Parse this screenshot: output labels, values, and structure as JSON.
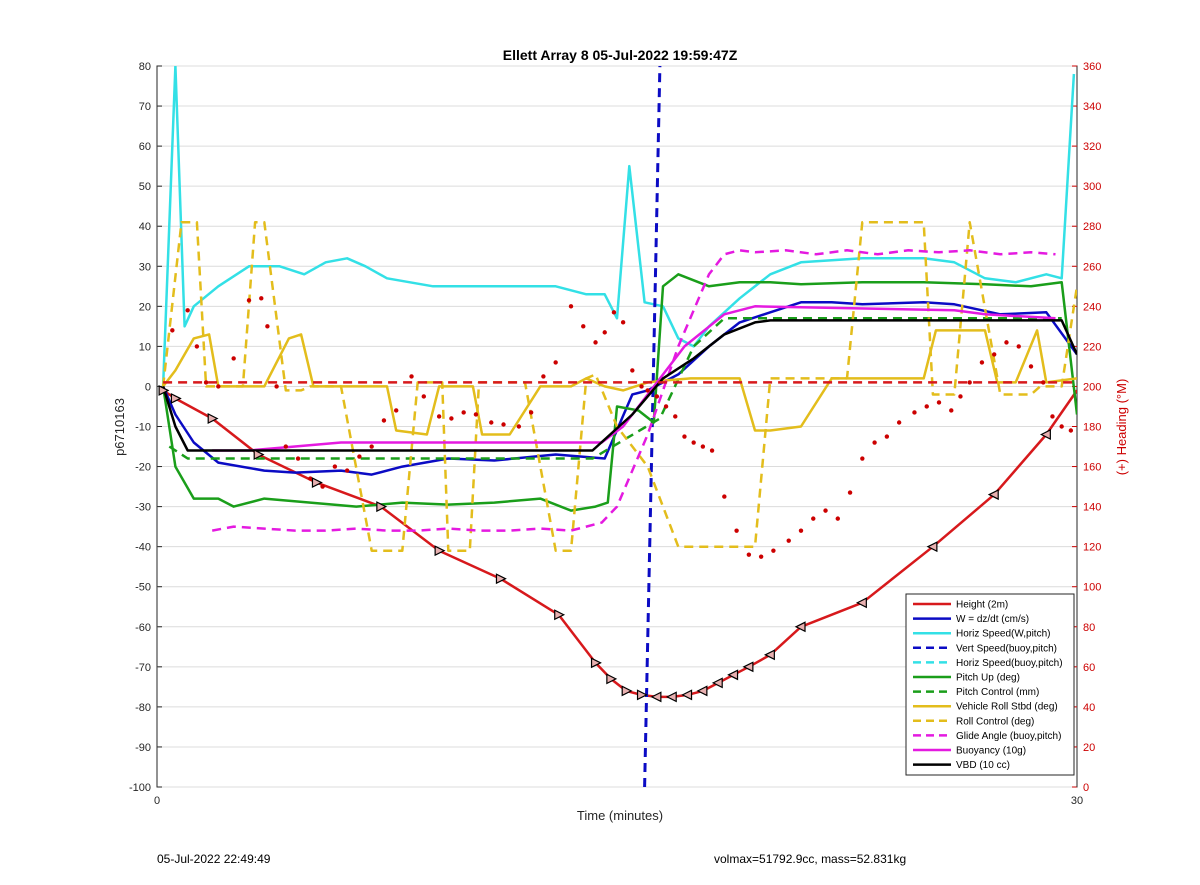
{
  "footer": {
    "left": "05-Jul-2022 22:49:49",
    "right": "volmax=51792.9cc, mass=52.831kg"
  },
  "chart_data": {
    "type": "line",
    "title": "Ellett Array 8 05-Jul-2022 19:59:47Z",
    "xlabel": "Time (minutes)",
    "ylabel": "p6710163",
    "ylabel_right": "(+) Heading (°M)",
    "xlim": [
      0,
      30
    ],
    "ylim": [
      -100,
      80
    ],
    "ylim_right": [
      0,
      360
    ],
    "x_ticks": [
      0,
      30
    ],
    "y_ticks": [
      -100,
      -90,
      -80,
      -70,
      -60,
      -50,
      -40,
      -30,
      -20,
      -10,
      0,
      10,
      20,
      30,
      40,
      50,
      60,
      70,
      80
    ],
    "y_ticks_right": [
      0,
      20,
      40,
      60,
      80,
      100,
      120,
      140,
      160,
      180,
      200,
      220,
      240,
      260,
      280,
      300,
      320,
      340,
      360
    ],
    "grid": "horizontal",
    "legend_position": "bottom-right",
    "colors": {
      "red": "#d7191c",
      "blue": "#0b0bc4",
      "cyan": "#33e0e6",
      "green": "#1a9e1a",
      "yellow": "#e3bd1c",
      "magenta": "#e41ae0",
      "black": "#000000",
      "heading": "#cc0000"
    },
    "series": [
      {
        "name": "Height (2m)",
        "color": "#d7191c",
        "style": "solid",
        "markers": true,
        "x": [
          0.2,
          0.6,
          1.8,
          3.3,
          5.2,
          7.3,
          9.2,
          11.2,
          13.1,
          14.3,
          14.8,
          15.3,
          15.8,
          16.3,
          16.8,
          17.3,
          17.8,
          18.3,
          18.8,
          19.3,
          20.0,
          21.0,
          23.0,
          25.3,
          27.3,
          29.0,
          30.0
        ],
        "values": [
          -1,
          -3,
          -8,
          -17,
          -24,
          -30,
          -41,
          -48,
          -57,
          -69,
          -73,
          -76,
          -77,
          -77.5,
          -77.5,
          -77,
          -76,
          -74,
          -72,
          -70,
          -67,
          -60,
          -54,
          -40,
          -27,
          -12,
          -1
        ]
      },
      {
        "name": "W = dz/dt (cm/s)",
        "color": "#0b0bc4",
        "style": "solid",
        "x": [
          0.2,
          0.6,
          1.2,
          2.0,
          3.5,
          4.5,
          6.0,
          7.0,
          8.0,
          9.5,
          11.0,
          13.0,
          14.6,
          15.5,
          16.0,
          17.0,
          18.0,
          19.0,
          20.0,
          21.0,
          22.0,
          23.0,
          25.0,
          26.0,
          27.5,
          29.0,
          30.0
        ],
        "values": [
          0,
          -7,
          -14,
          -19,
          -21,
          -21.5,
          -21,
          -22,
          -20,
          -18,
          -18.5,
          -17,
          -18,
          -2,
          -1,
          3,
          10,
          16,
          18.5,
          21,
          21,
          20.5,
          21,
          20.5,
          18,
          18.5,
          8
        ]
      },
      {
        "name": "Horiz Speed(W,pitch)",
        "color": "#33e0e6",
        "style": "solid",
        "x": [
          0.2,
          0.6,
          0.9,
          1.2,
          2.0,
          3.0,
          4.0,
          4.8,
          5.5,
          6.2,
          6.8,
          7.5,
          9.0,
          11.0,
          13.0,
          14.0,
          14.6,
          15.0,
          15.4,
          15.9,
          16.5,
          17.0,
          17.5,
          18.0,
          19.0,
          20.0,
          21.0,
          23.0,
          25.0,
          26.0,
          27.0,
          28.0,
          29.0,
          29.5,
          29.9
        ],
        "values": [
          0,
          80,
          15,
          20,
          25,
          30,
          30,
          28,
          31,
          32,
          30,
          27,
          25,
          25,
          25,
          23,
          23,
          17,
          55,
          21,
          20,
          12,
          10,
          15,
          22,
          28,
          31,
          32,
          32,
          31,
          27,
          26,
          28,
          27,
          78
        ]
      },
      {
        "name": "Vert Speed(buoy,pitch)",
        "color": "#0b0bc4",
        "style": "dashed",
        "line_width": 3,
        "x": [
          15.9,
          16.4
        ],
        "values": [
          -100,
          80
        ]
      },
      {
        "name": "Horiz Speed(buoy,pitch)",
        "color": "#33e0e6",
        "style": "dashed",
        "x": [],
        "values": []
      },
      {
        "name": "Pitch Up (deg)",
        "color": "#1a9e1a",
        "style": "solid",
        "x": [
          0.2,
          0.6,
          1.2,
          2.0,
          2.5,
          3.5,
          5.0,
          6.5,
          8.0,
          9.5,
          11.0,
          12.5,
          13.5,
          14.3,
          14.7,
          15.0,
          15.7,
          16.2,
          16.5,
          17.0,
          18.0,
          19.0,
          20.0,
          21.0,
          23.0,
          25.0,
          27.0,
          28.5,
          29.5,
          30.0
        ],
        "values": [
          0,
          -20,
          -28,
          -28,
          -30,
          -28,
          -29,
          -30,
          -29,
          -29.5,
          -29,
          -28,
          -31,
          -30,
          -29,
          -5,
          -6,
          -9,
          25,
          28,
          25,
          26,
          26,
          25.5,
          26,
          26,
          25.5,
          25,
          26,
          -7
        ]
      },
      {
        "name": "Pitch Control (mm)",
        "color": "#1a9e1a",
        "style": "dashed",
        "x": [
          0.4,
          1.0,
          14.2,
          16.4,
          17.5,
          18.5,
          19.5,
          29.5
        ],
        "values": [
          -15,
          -18,
          -18,
          -8,
          10,
          17,
          17,
          17
        ]
      },
      {
        "name": "Vehicle Roll Stbd (deg)",
        "color": "#e3bd1c",
        "style": "solid",
        "x": [
          0.2,
          0.6,
          1.2,
          1.7,
          2.0,
          3.0,
          3.5,
          4.3,
          4.7,
          5.1,
          5.8,
          6.3,
          7.5,
          7.8,
          8.8,
          9.2,
          10.3,
          10.6,
          11.5,
          12.5,
          13.5,
          14.0,
          14.6,
          15.2,
          16.0,
          16.6,
          17.4,
          18.0,
          19.0,
          19.5,
          20.0,
          21.0,
          22.0,
          23.0,
          25.0,
          25.4,
          27.0,
          27.4,
          28.0,
          28.7,
          29.0,
          30.0
        ],
        "values": [
          0,
          4,
          12,
          13,
          0,
          0,
          0,
          12,
          13,
          0,
          0,
          0,
          0,
          -11,
          -12,
          0,
          0,
          -12,
          -12,
          0,
          0,
          2,
          0,
          -1,
          1,
          1.5,
          2,
          2,
          2,
          -11,
          -11,
          -10,
          2,
          2,
          2,
          14,
          14,
          1,
          1,
          14,
          1,
          2
        ]
      },
      {
        "name": "Roll Control (deg)",
        "color": "#e3bd1c",
        "style": "dashed",
        "x": [
          0.2,
          0.8,
          1.3,
          1.6,
          2.0,
          2.8,
          3.2,
          3.5,
          4.2,
          4.7,
          5.0,
          5.5,
          6.0,
          7.0,
          7.3,
          8.0,
          8.5,
          9.3,
          9.5,
          10.2,
          10.5,
          11.3,
          12.0,
          13.0,
          13.5,
          14.0,
          14.3,
          15.0,
          16.0,
          17.0,
          17.5,
          18.5,
          19.5,
          20.0,
          20.4,
          21.0,
          22.0,
          22.5,
          23.0,
          25.0,
          25.3,
          26.0,
          26.5,
          27.5,
          27.8,
          28.5,
          28.8,
          29.5,
          30.0
        ],
        "values": [
          0,
          41,
          41,
          0,
          0,
          0,
          41,
          41,
          -1,
          -1,
          0,
          0,
          0,
          -41,
          -41,
          -41,
          1,
          1,
          -41,
          -41,
          1,
          1,
          1,
          -41,
          -41,
          2,
          3,
          -10,
          -20,
          -40,
          -40,
          -40,
          -40,
          2,
          2,
          2,
          2,
          2,
          41,
          41,
          -2,
          -2,
          41,
          -2,
          -2,
          -2,
          0,
          0,
          25
        ]
      },
      {
        "name": "Glide Angle (buoy,pitch)",
        "color": "#e41ae0",
        "style": "dashed",
        "x": [
          1.8,
          2.5,
          3.5,
          4.5,
          5.5,
          6.5,
          7.5,
          8.5,
          9.5,
          10.5,
          11.5,
          12.5,
          13.5,
          14.5,
          15.0,
          16.0,
          17.0,
          18.0,
          18.5,
          19.0,
          19.5,
          20.5,
          21.5,
          22.5,
          23.5,
          24.5,
          25.5,
          26.5,
          27.5,
          28.5,
          29.3
        ],
        "values": [
          -36,
          -35,
          -35.5,
          -36,
          -36,
          -35.5,
          -36,
          -36,
          -35.5,
          -36,
          -36,
          -35.5,
          -36,
          -34,
          -30,
          -12,
          10,
          28,
          33,
          34,
          33.5,
          34,
          33,
          34,
          33,
          34,
          33.5,
          34,
          33,
          33.5,
          33
        ]
      },
      {
        "name": "Buoyancy (10g)",
        "color": "#e41ae0",
        "style": "solid",
        "x": [
          1.8,
          3.0,
          4.5,
          6.0,
          14.5,
          15.2,
          16.0,
          17.2,
          18.5,
          19.5,
          26.0,
          27.0,
          29.3
        ],
        "values": [
          -16,
          -16,
          -15,
          -14,
          -14,
          -10,
          -2,
          10,
          18,
          20,
          19,
          18,
          17
        ]
      },
      {
        "name": "VBD (10 cc)",
        "color": "#000000",
        "style": "solid",
        "x": [
          0.2,
          0.6,
          1.0,
          14.2,
          15.5,
          16.5,
          17.5,
          18.5,
          19.5,
          20.0,
          29.5,
          30.0
        ],
        "values": [
          0,
          -10,
          -16,
          -16,
          -7,
          2,
          7,
          13,
          16,
          16.5,
          16.5,
          8
        ]
      },
      {
        "name": "Heading zero line",
        "color": "#d7191c",
        "style": "dashed",
        "legend": false,
        "x": [
          0.2,
          30.0
        ],
        "values": [
          1,
          1
        ]
      }
    ],
    "heading_points": {
      "color": "#cc0000",
      "x": [
        0.5,
        1.0,
        1.3,
        1.6,
        2.0,
        2.5,
        3.0,
        3.4,
        3.6,
        3.9,
        4.2,
        4.6,
        5.0,
        5.4,
        5.8,
        6.2,
        6.6,
        7.0,
        7.4,
        7.8,
        8.3,
        8.7,
        9.2,
        9.6,
        10.0,
        10.4,
        10.9,
        11.3,
        11.8,
        12.2,
        12.6,
        13.0,
        13.5,
        13.9,
        14.3,
        14.6,
        14.9,
        15.2,
        15.5,
        15.8,
        16.0,
        16.3,
        16.6,
        16.9,
        17.2,
        17.5,
        17.8,
        18.1,
        18.5,
        18.9,
        19.3,
        19.7,
        20.1,
        20.6,
        21.0,
        21.4,
        21.8,
        22.2,
        22.6,
        23.0,
        23.4,
        23.8,
        24.2,
        24.7,
        25.1,
        25.5,
        25.9,
        26.2,
        26.5,
        26.9,
        27.3,
        27.7,
        28.1,
        28.5,
        28.9,
        29.2,
        29.5,
        29.8
      ],
      "values": [
        228,
        238,
        220,
        202,
        200,
        214,
        243,
        244,
        230,
        200,
        170,
        164,
        154,
        150,
        160,
        158,
        165,
        170,
        183,
        188,
        205,
        195,
        185,
        184,
        187,
        186,
        182,
        181,
        180,
        187,
        205,
        212,
        240,
        230,
        222,
        227,
        237,
        232,
        208,
        200,
        198,
        195,
        190,
        185,
        175,
        172,
        170,
        168,
        145,
        128,
        116,
        115,
        118,
        123,
        128,
        134,
        138,
        134,
        147,
        164,
        172,
        175,
        182,
        187,
        190,
        192,
        188,
        195,
        202,
        212,
        216,
        222,
        220,
        210,
        202,
        185,
        180,
        178
      ]
    }
  }
}
